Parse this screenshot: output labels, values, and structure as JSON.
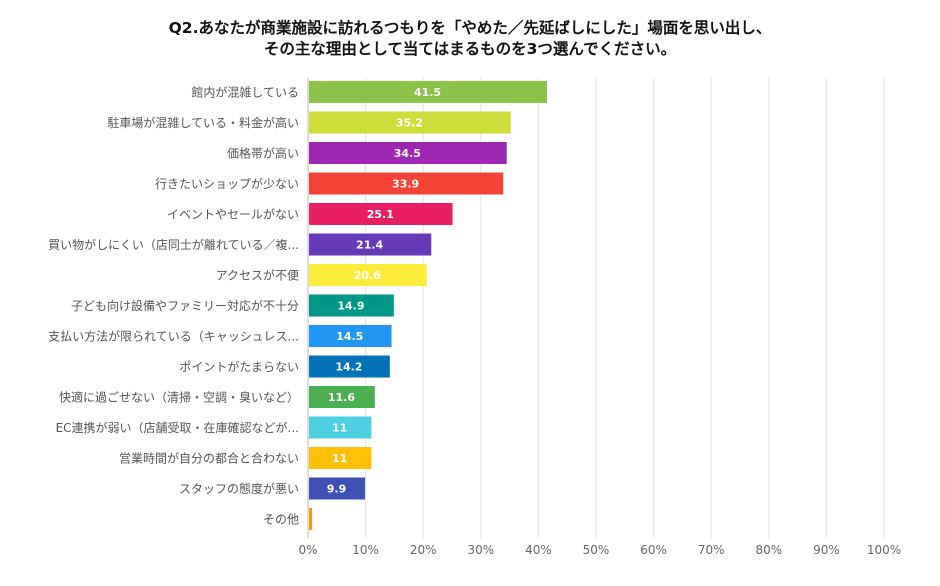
{
  "chart_data": {
    "type": "bar",
    "orientation": "horizontal",
    "title_lines": [
      "Q2.あなたが商業施設に訪れるつもりを「やめた／先延ばしにした」場面を思い出し、",
      "その主な理由として当てはまるものを3つ選んでください。"
    ],
    "categories": [
      "館内が混雑している",
      "駐車場が混雑している・料金が高い",
      "価格帯が高い",
      "行きたいショップが少ない",
      "イベントやセールがない",
      "買い物がしにくい（店同士が離れている／複...",
      "アクセスが不便",
      "子ども向け設備やファミリー対応が不十分",
      "支払い方法が限られている（キャッシュレス...",
      "ポイントがたまらない",
      "快適に過ごせない（清掃・空調・臭いなど）",
      "EC連携が弱い（店舗受取・在庫確認などが...",
      "営業時間が自分の都合と合わない",
      "スタッフの態度が悪い",
      "その他"
    ],
    "values": [
      41.5,
      35.2,
      34.5,
      33.9,
      25.1,
      21.4,
      20.6,
      14.9,
      14.5,
      14.2,
      11.6,
      11,
      11,
      9.9,
      0.7
    ],
    "data_labels": [
      "41.5",
      "35.2",
      "34.5",
      "33.9",
      "25.1",
      "21.4",
      "20.6",
      "14.9",
      "14.5",
      "14.2",
      "11.6",
      "11",
      "11",
      "9.9",
      ""
    ],
    "colors": [
      "#8BC34A",
      "#CDDC39",
      "#9C27B0",
      "#F44336",
      "#E91E63",
      "#673AB7",
      "#FFEB3B",
      "#009688",
      "#2196F3",
      "#0272B8",
      "#4CAF50",
      "#4DD0E1",
      "#FFC107",
      "#3F51B5",
      "#FF9800"
    ],
    "xlim": [
      0,
      100
    ],
    "x_ticks": [
      "0%",
      "10%",
      "20%",
      "30%",
      "40%",
      "50%",
      "60%",
      "70%",
      "80%",
      "90%",
      "100%"
    ],
    "grid": true
  }
}
